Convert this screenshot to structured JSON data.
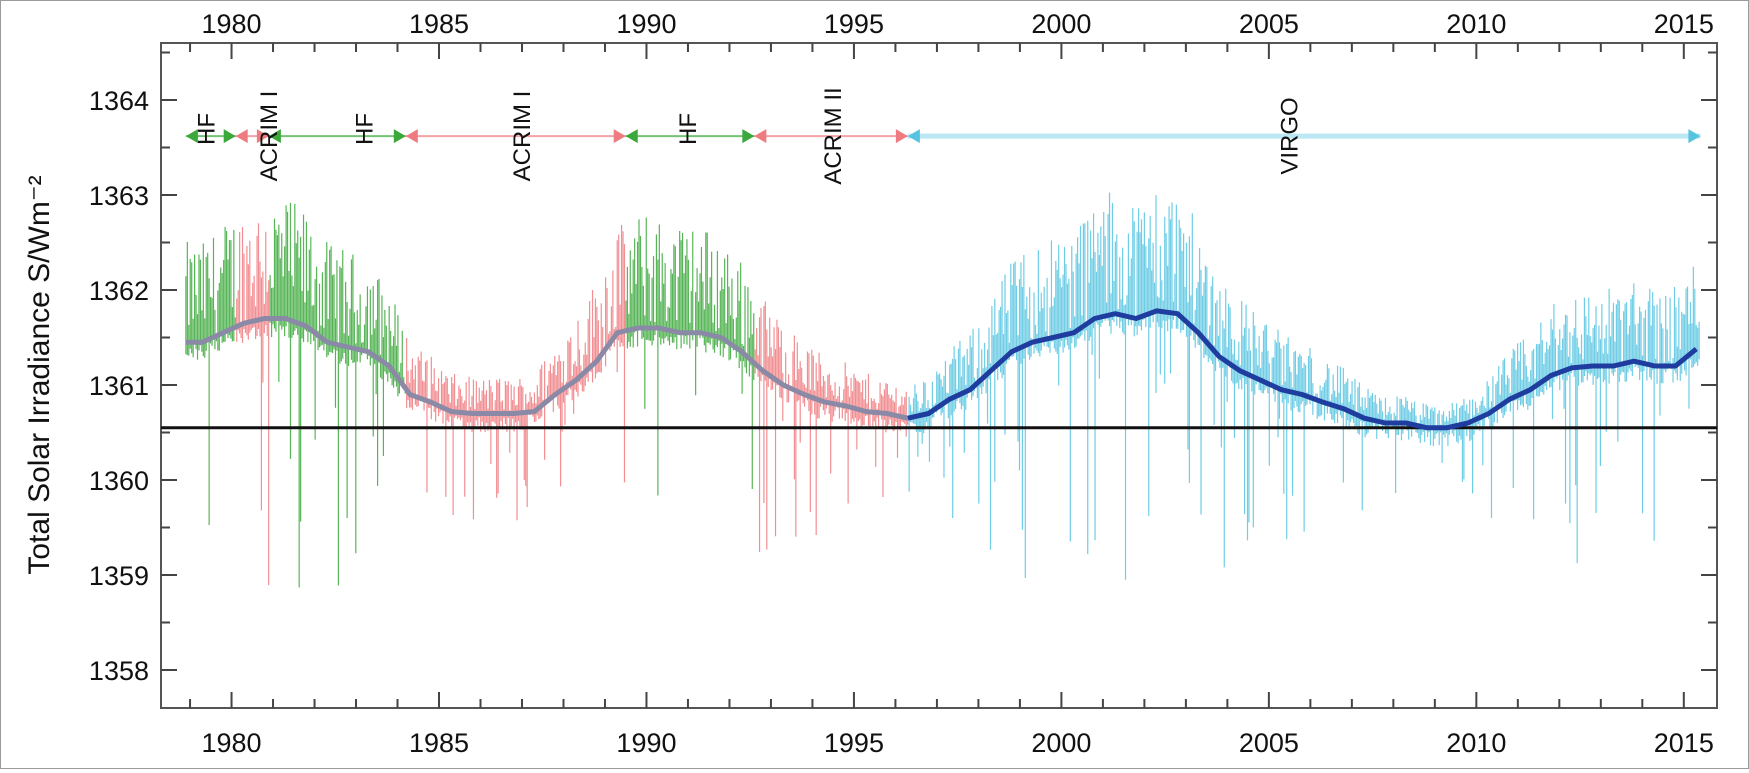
{
  "chart_data": {
    "type": "line",
    "title": "",
    "ylabel": "Total Solar Irradiance S/Wm⁻²",
    "xlabel": "",
    "xlim": [
      1978.3,
      2015.8
    ],
    "ylim": [
      1357.6,
      1364.6
    ],
    "x_ticks": [
      "1980",
      "1985",
      "1990",
      "1995",
      "2000",
      "2005",
      "2010",
      "2015"
    ],
    "x_tick_values": [
      1980,
      1985,
      1990,
      1995,
      2000,
      2005,
      2010,
      2015
    ],
    "y_ticks": [
      "1358",
      "1359",
      "1360",
      "1361",
      "1362",
      "1363",
      "1364"
    ],
    "y_tick_values": [
      1358,
      1359,
      1360,
      1361,
      1362,
      1363,
      1364
    ],
    "baseline": 1360.55,
    "colors": {
      "HF": "#3aa83a",
      "ACRIM": "#ee7b80",
      "VIRGO": "#56c4e0",
      "composite_early": "#8a8aa6",
      "composite_virgo": "#1f3d9e",
      "baseline": "#111111"
    },
    "instrument_labels": [
      {
        "text": "HF",
        "x": 1979.4
      },
      {
        "text": "ACRIM I",
        "x": 1980.9
      },
      {
        "text": "HF",
        "x": 1983.2
      },
      {
        "text": "ACRIM I",
        "x": 1987.0
      },
      {
        "text": "HF",
        "x": 1991.0
      },
      {
        "text": "ACRIM II",
        "x": 1994.5
      },
      {
        "text": "VIRGO",
        "x": 2005.5
      }
    ],
    "coverage_segments": [
      {
        "instrument": "HF",
        "start": 1978.9,
        "end": 1980.1
      },
      {
        "instrument": "ACRIM",
        "start": 1980.1,
        "end": 1980.9
      },
      {
        "instrument": "HF",
        "start": 1980.9,
        "end": 1984.2
      },
      {
        "instrument": "ACRIM",
        "start": 1984.2,
        "end": 1989.5
      },
      {
        "instrument": "HF",
        "start": 1989.5,
        "end": 1992.6
      },
      {
        "instrument": "ACRIM",
        "start": 1992.6,
        "end": 1996.3
      },
      {
        "instrument": "VIRGO",
        "start": 1996.3,
        "end": 2015.4
      }
    ],
    "composite": {
      "x": [
        1978.9,
        1979.3,
        1979.8,
        1980.3,
        1980.8,
        1981.3,
        1981.8,
        1982.3,
        1982.8,
        1983.3,
        1983.8,
        1984.3,
        1984.8,
        1985.3,
        1985.8,
        1986.3,
        1986.8,
        1987.3,
        1987.8,
        1988.3,
        1988.8,
        1989.3,
        1989.8,
        1990.3,
        1990.8,
        1991.3,
        1991.8,
        1992.3,
        1992.8,
        1993.3,
        1993.8,
        1994.3,
        1994.8,
        1995.3,
        1995.8,
        1996.3,
        1996.8,
        1997.3,
        1997.8,
        1998.3,
        1998.8,
        1999.3,
        1999.8,
        2000.3,
        2000.8,
        2001.3,
        2001.8,
        2002.3,
        2002.8,
        2003.3,
        2003.8,
        2004.3,
        2004.8,
        2005.3,
        2005.8,
        2006.3,
        2006.8,
        2007.3,
        2007.8,
        2008.3,
        2008.8,
        2009.3,
        2009.8,
        2010.3,
        2010.8,
        2011.3,
        2011.8,
        2012.3,
        2012.8,
        2013.3,
        2013.8,
        2014.3,
        2014.8,
        2015.3
      ],
      "y": [
        1361.45,
        1361.45,
        1361.55,
        1361.65,
        1361.7,
        1361.7,
        1361.62,
        1361.45,
        1361.4,
        1361.35,
        1361.2,
        1360.9,
        1360.82,
        1360.72,
        1360.7,
        1360.7,
        1360.7,
        1360.72,
        1360.9,
        1361.05,
        1361.25,
        1361.55,
        1361.6,
        1361.6,
        1361.55,
        1361.55,
        1361.5,
        1361.35,
        1361.15,
        1361.0,
        1360.9,
        1360.82,
        1360.78,
        1360.72,
        1360.7,
        1360.65,
        1360.7,
        1360.85,
        1360.95,
        1361.15,
        1361.35,
        1361.45,
        1361.5,
        1361.55,
        1361.7,
        1361.75,
        1361.7,
        1361.78,
        1361.75,
        1361.55,
        1361.3,
        1361.15,
        1361.05,
        1360.95,
        1360.9,
        1360.82,
        1360.75,
        1360.65,
        1360.6,
        1360.6,
        1360.55,
        1360.55,
        1360.6,
        1360.7,
        1360.85,
        1360.95,
        1361.1,
        1361.18,
        1361.2,
        1361.2,
        1361.25,
        1361.2,
        1361.2,
        1361.38
      ]
    }
  }
}
